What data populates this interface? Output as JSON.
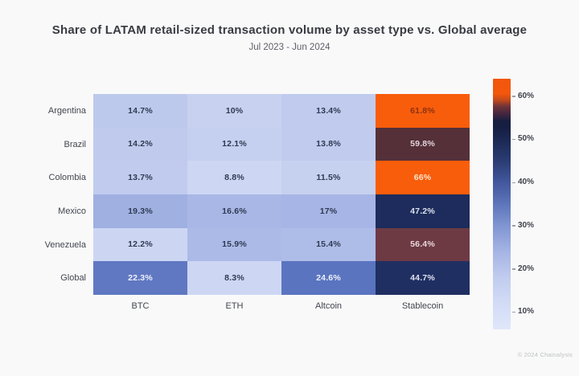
{
  "title": "Share of LATAM retail-sized transaction volume by asset type vs. Global average",
  "subtitle": "Jul 2023 - Jun 2024",
  "footer": "© 2024 Chainalysis",
  "chart_data": {
    "type": "heatmap",
    "title": "Share of LATAM retail-sized transaction volume by asset type vs. Global average",
    "subtitle": "Jul 2023 - Jun 2024",
    "rows": [
      "Argentina",
      "Brazil",
      "Colombia",
      "Mexico",
      "Venezuela",
      "Global"
    ],
    "columns": [
      "BTC",
      "ETH",
      "Altcoin",
      "Stablecoin"
    ],
    "unit": "%",
    "values": [
      [
        14.7,
        10,
        13.4,
        61.8
      ],
      [
        14.2,
        12.1,
        13.8,
        59.8
      ],
      [
        13.7,
        8.8,
        11.5,
        66
      ],
      [
        19.3,
        16.6,
        17,
        47.2
      ],
      [
        12.2,
        15.9,
        15.4,
        56.4
      ],
      [
        22.3,
        8.3,
        24.6,
        44.7
      ]
    ],
    "cell_labels": [
      [
        "14.7%",
        "10%",
        "13.4%",
        "61.8%"
      ],
      [
        "14.2%",
        "12.1%",
        "13.8%",
        "59.8%"
      ],
      [
        "13.7%",
        "8.8%",
        "11.5%",
        "66%"
      ],
      [
        "19.3%",
        "16.6%",
        "17%",
        "47.2%"
      ],
      [
        "12.2%",
        "15.9%",
        "15.4%",
        "56.4%"
      ],
      [
        "22.3%",
        "8.3%",
        "24.6%",
        "44.7%"
      ]
    ],
    "cell_colors": [
      [
        {
          "bg": "#bdc9ec",
          "fg": "#2f3a52"
        },
        {
          "bg": "#c8d2f0",
          "fg": "#2f3a52"
        },
        {
          "bg": "#c0cbee",
          "fg": "#2f3a52"
        },
        {
          "bg": "#f85d0b",
          "fg": "#8c3212"
        }
      ],
      [
        {
          "bg": "#bfcaed",
          "fg": "#2f3a52"
        },
        {
          "bg": "#c5d0f0",
          "fg": "#2f3a52"
        },
        {
          "bg": "#c0cbee",
          "fg": "#2f3a52"
        },
        {
          "bg": "#553039",
          "fg": "#e3d5da"
        }
      ],
      [
        {
          "bg": "#c0cbee",
          "fg": "#2f3a52"
        },
        {
          "bg": "#cdd7f3",
          "fg": "#2f3a52"
        },
        {
          "bg": "#c6d1f0",
          "fg": "#2f3a52"
        },
        {
          "bg": "#f85d0b",
          "fg": "#fbe3cd"
        }
      ],
      [
        {
          "bg": "#9fb0e1",
          "fg": "#2f3a52"
        },
        {
          "bg": "#a8b7e5",
          "fg": "#2f3a52"
        },
        {
          "bg": "#a6b5e5",
          "fg": "#2f3a52"
        },
        {
          "bg": "#1d2c5c",
          "fg": "#dfe3ef"
        }
      ],
      [
        {
          "bg": "#ccd6f3",
          "fg": "#2f3a52"
        },
        {
          "bg": "#abbae7",
          "fg": "#2f3a52"
        },
        {
          "bg": "#aebce8",
          "fg": "#2f3a52"
        },
        {
          "bg": "#6d3a44",
          "fg": "#ead8da"
        }
      ],
      [
        {
          "bg": "#6078c2",
          "fg": "#eef1fa"
        },
        {
          "bg": "#cdd7f4",
          "fg": "#2f3a52"
        },
        {
          "bg": "#5a74c0",
          "fg": "#eef1fa"
        },
        {
          "bg": "#202f62",
          "fg": "#dfe3ef"
        }
      ]
    ],
    "colorbar": {
      "value_min": 6,
      "value_max": 64,
      "tick_values": [
        10,
        20,
        30,
        40,
        50,
        60
      ],
      "tick_labels": [
        "10%",
        "20%",
        "30%",
        "40%",
        "50%",
        "60%"
      ],
      "gradient_stops": [
        [
          "0%",
          "#f2570c"
        ],
        [
          "6%",
          "#f2570c"
        ],
        [
          "8.5%",
          "#c44a1d"
        ],
        [
          "11%",
          "#713338"
        ],
        [
          "14%",
          "#43263f"
        ],
        [
          "17%",
          "#161e40"
        ],
        [
          "20%",
          "#161f44"
        ],
        [
          "26%",
          "#1e2c5a"
        ],
        [
          "33%",
          "#2b3d74"
        ],
        [
          "41%",
          "#41569b"
        ],
        [
          "50%",
          "#5d75ba"
        ],
        [
          "59%",
          "#8196d2"
        ],
        [
          "69%",
          "#a5b4e4"
        ],
        [
          "79%",
          "#c0cbee"
        ],
        [
          "90%",
          "#d3dcf6"
        ],
        [
          "100%",
          "#dfe7fa"
        ]
      ]
    },
    "layout": {
      "grid": false,
      "legend_position": "right-colorbar"
    }
  },
  "colors": {
    "background": "#f9f9f9",
    "title_text": "#393b42",
    "label_text": "#42464f",
    "accent_orange": "#f85d0b",
    "accent_navy": "#1d2c5c",
    "accent_maroon": "#6d3a44"
  }
}
